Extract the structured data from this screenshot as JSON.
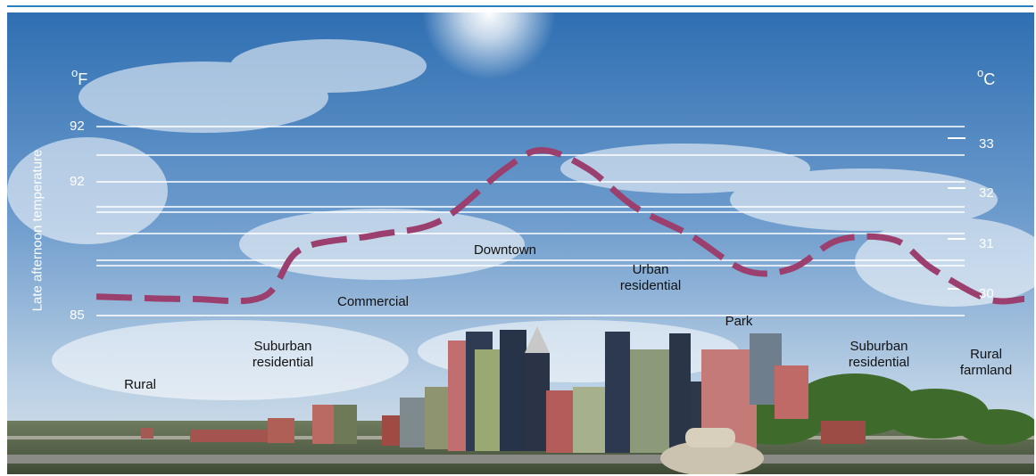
{
  "chart_data": {
    "type": "line",
    "ylabel": "Late afternoon temperature",
    "units": {
      "left": [
        "o",
        "F"
      ],
      "right": [
        "o",
        "C"
      ]
    },
    "left_ticks": [
      "92",
      "92",
      "85"
    ],
    "right_ticks": [
      "33",
      "32",
      "31",
      "30"
    ],
    "ylim_celsius": [
      29.5,
      33.5
    ],
    "series": [
      {
        "x": [
          0,
          10,
          18,
          22,
          30,
          37,
          44,
          48,
          53,
          58,
          64,
          70,
          75,
          80,
          86,
          90,
          96,
          100
        ],
        "y": [
          29.9,
          29.85,
          29.9,
          30.9,
          31.2,
          31.5,
          32.6,
          33.0,
          32.6,
          31.8,
          31.2,
          30.45,
          30.5,
          31.1,
          31.1,
          30.5,
          29.85,
          29.85
        ]
      }
    ],
    "line_color": "#9a3f6e",
    "zones": [
      {
        "label": "Rural"
      },
      {
        "label": "Suburban\nresidential"
      },
      {
        "label": "Commercial"
      },
      {
        "label": "Downtown"
      },
      {
        "label": "Urban\nresidential"
      },
      {
        "label": "Park"
      },
      {
        "label": "Suburban\nresidential"
      },
      {
        "label": "Rural\nfarmland"
      }
    ]
  }
}
